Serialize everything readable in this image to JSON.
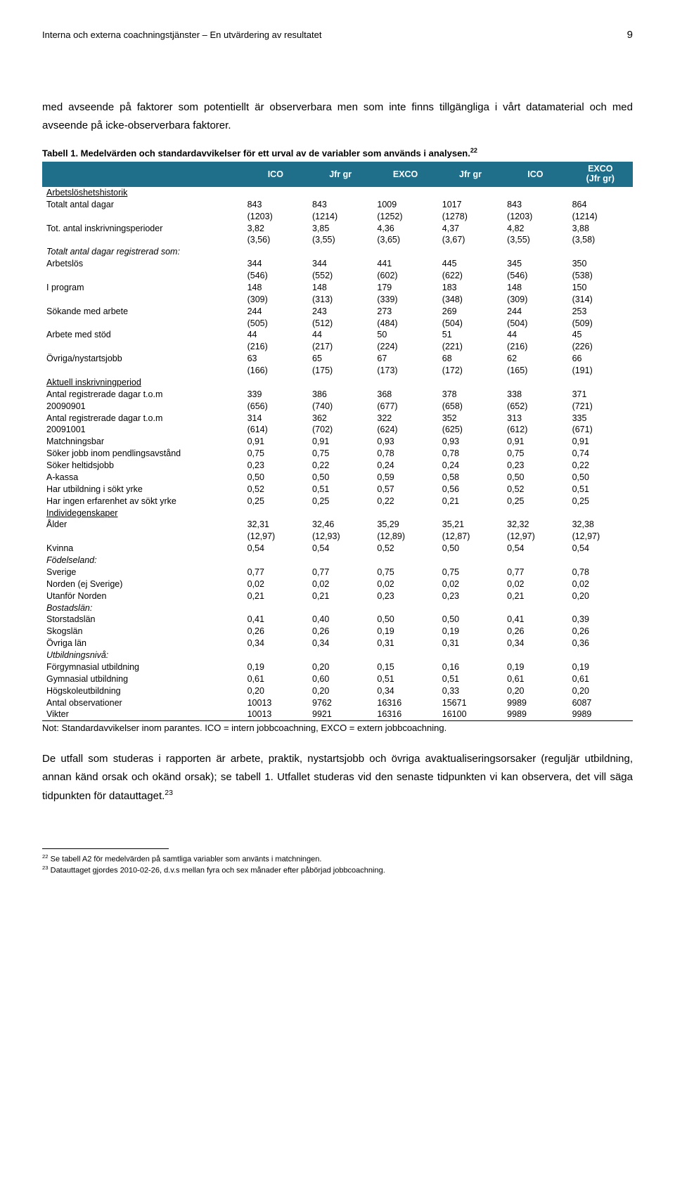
{
  "header": {
    "title": "Interna och externa coachningstjänster – En utvärdering av resultatet",
    "page": "9"
  },
  "intro": "med avseende på faktorer som potentiellt är observerbara men som inte finns tillgängliga i vårt datamaterial och med avseende på icke-observerbara faktorer.",
  "table": {
    "caption_line1": "Tabell 1. Medelvärden och standardavvikelser för ett urval av de variabler som används i analysen.",
    "caption_sup": "22",
    "columns": [
      "",
      "ICO",
      "Jfr gr",
      "EXCO",
      "Jfr gr",
      "ICO",
      "EXCO (Jfr gr)"
    ]
  },
  "sections": [
    {
      "type": "section",
      "label": "Arbetslöshetshistorik"
    },
    {
      "type": "data2",
      "label": "Totalt antal dagar",
      "v": [
        "843",
        "843",
        "1009",
        "1017",
        "843",
        "864"
      ],
      "sd": [
        "(1203)",
        "(1214)",
        "(1252)",
        "(1278)",
        "(1203)",
        "(1214)"
      ]
    },
    {
      "type": "data2",
      "label": "Tot. antal inskrivningsperioder",
      "v": [
        "3,82",
        "3,85",
        "4,36",
        "4,37",
        "4,82",
        "3,88"
      ],
      "sd": [
        "(3,56)",
        "(3,55)",
        "(3,65)",
        "(3,67)",
        "(3,55)",
        "(3,58)"
      ]
    },
    {
      "type": "italic",
      "label": "Totalt antal dagar registrerad som:"
    },
    {
      "type": "data2",
      "label": "Arbetslös",
      "v": [
        "344",
        "344",
        "441",
        "445",
        "345",
        "350"
      ],
      "sd": [
        "(546)",
        "(552)",
        "(602)",
        "(622)",
        "(546)",
        "(538)"
      ]
    },
    {
      "type": "data2",
      "label": "I program",
      "v": [
        "148",
        "148",
        "179",
        "183",
        "148",
        "150"
      ],
      "sd": [
        "(309)",
        "(313)",
        "(339)",
        "(348)",
        "(309)",
        "(314)"
      ]
    },
    {
      "type": "data2",
      "label": "Sökande med arbete",
      "v": [
        "244",
        "243",
        "273",
        "269",
        "244",
        "253"
      ],
      "sd": [
        "(505)",
        "(512)",
        "(484)",
        "(504)",
        "(504)",
        "(509)"
      ]
    },
    {
      "type": "data2",
      "label": "Arbete med stöd",
      "v": [
        "44",
        "44",
        "50",
        "51",
        "44",
        "45"
      ],
      "sd": [
        "(216)",
        "(217)",
        "(224)",
        "(221)",
        "(216)",
        "(226)"
      ]
    },
    {
      "type": "data2",
      "label": "Övriga/nystartsjobb",
      "v": [
        "63",
        "65",
        "67",
        "68",
        "62",
        "66"
      ],
      "sd": [
        "(166)",
        "(175)",
        "(173)",
        "(172)",
        "(165)",
        "(191)"
      ]
    },
    {
      "type": "section",
      "label": "Aktuell inskrivningperiod"
    },
    {
      "type": "data2",
      "label": "Antal registrerade dagar t.o.m 20090901",
      "v": [
        "339",
        "386",
        "368",
        "378",
        "338",
        "371"
      ],
      "sd": [
        "(656)",
        "(740)",
        "(677)",
        "(658)",
        "(652)",
        "(721)"
      ]
    },
    {
      "type": "data2",
      "label": "Antal registrerade dagar t.o.m 20091001",
      "v": [
        "314",
        "362",
        "322",
        "352",
        "313",
        "335"
      ],
      "sd": [
        "(614)",
        "(702)",
        "(624)",
        "(625)",
        "(612)",
        "(671)"
      ]
    },
    {
      "type": "data1",
      "label": "Matchningsbar",
      "v": [
        "0,91",
        "0,91",
        "0,93",
        "0,93",
        "0,91",
        "0,91"
      ]
    },
    {
      "type": "data1",
      "label": "Söker jobb inom pendlingsavstånd",
      "v": [
        "0,75",
        "0,75",
        "0,78",
        "0,78",
        "0,75",
        "0,74"
      ]
    },
    {
      "type": "data1",
      "label": "Söker heltidsjobb",
      "v": [
        "0,23",
        "0,22",
        "0,24",
        "0,24",
        "0,23",
        "0,22"
      ]
    },
    {
      "type": "data1",
      "label": "A-kassa",
      "v": [
        "0,50",
        "0,50",
        "0,59",
        "0,58",
        "0,50",
        "0,50"
      ]
    },
    {
      "type": "data1",
      "label": "Har utbildning i sökt yrke",
      "v": [
        "0,52",
        "0,51",
        "0,57",
        "0,56",
        "0,52",
        "0,51"
      ]
    },
    {
      "type": "data1",
      "label": "Har ingen erfarenhet av sökt yrke",
      "v": [
        "0,25",
        "0,25",
        "0,22",
        "0,21",
        "0,25",
        "0,25"
      ]
    },
    {
      "type": "section",
      "label": "Individegenskaper"
    },
    {
      "type": "data2",
      "label": "Ålder",
      "v": [
        "32,31",
        "32,46",
        "35,29",
        "35,21",
        "32,32",
        "32,38"
      ],
      "sd": [
        "(12,97)",
        "(12,93)",
        "(12,89)",
        "(12,87)",
        "(12,97)",
        "(12,97)"
      ]
    },
    {
      "type": "data1",
      "label": "Kvinna",
      "v": [
        "0,54",
        "0,54",
        "0,52",
        "0,50",
        "0,54",
        "0,54"
      ]
    },
    {
      "type": "italic",
      "label": "Födelseland:"
    },
    {
      "type": "data1",
      "label": "Sverige",
      "v": [
        "0,77",
        "0,77",
        "0,75",
        "0,75",
        "0,77",
        "0,78"
      ]
    },
    {
      "type": "data1",
      "label": "Norden (ej Sverige)",
      "v": [
        "0,02",
        "0,02",
        "0,02",
        "0,02",
        "0,02",
        "0,02"
      ]
    },
    {
      "type": "data1",
      "label": "Utanför Norden",
      "v": [
        "0,21",
        "0,21",
        "0,23",
        "0,23",
        "0,21",
        "0,20"
      ]
    },
    {
      "type": "italic",
      "label": "Bostadslän:"
    },
    {
      "type": "data1",
      "label": "Storstadslän",
      "v": [
        "0,41",
        "0,40",
        "0,50",
        "0,50",
        "0,41",
        "0,39"
      ]
    },
    {
      "type": "data1",
      "label": "Skogslän",
      "v": [
        "0,26",
        "0,26",
        "0,19",
        "0,19",
        "0,26",
        "0,26"
      ]
    },
    {
      "type": "data1",
      "label": "Övriga län",
      "v": [
        "0,34",
        "0,34",
        "0,31",
        "0,31",
        "0,34",
        "0,36"
      ]
    },
    {
      "type": "italic",
      "label": "Utbildningsnivå:"
    },
    {
      "type": "data1",
      "label": "Förgymnasial utbildning",
      "v": [
        "0,19",
        "0,20",
        "0,15",
        "0,16",
        "0,19",
        "0,19"
      ]
    },
    {
      "type": "data1",
      "label": "Gymnasial utbildning",
      "v": [
        "0,61",
        "0,60",
        "0,51",
        "0,51",
        "0,61",
        "0,61"
      ]
    },
    {
      "type": "data1",
      "label": "Högskoleutbildning",
      "v": [
        "0,20",
        "0,20",
        "0,34",
        "0,33",
        "0,20",
        "0,20"
      ]
    },
    {
      "type": "data1",
      "label": "Antal observationer",
      "v": [
        "10013",
        "9762",
        "16316",
        "15671",
        "9989",
        "6087"
      ]
    },
    {
      "type": "data1",
      "label": "Vikter",
      "v": [
        "10013",
        "9921",
        "16316",
        "16100",
        "9989",
        "9989"
      ]
    }
  ],
  "table_note": "Not: Standardavvikelser inom parantes. ICO = intern jobbcoachning, EXCO = extern jobbcoachning.",
  "body_para": "De utfall som studeras i rapporten är arbete, praktik, nystartsjobb och övriga avaktualiseringsorsaker (reguljär utbildning, annan känd orsak och okänd orsak); se tabell 1. Utfallet studeras vid den senaste tidpunkten vi kan observera, det vill säga tidpunkten för datauttaget.",
  "body_para_sup": "23",
  "footnotes": {
    "n22": "Se tabell A2 för medelvärden på samtliga variabler som använts i matchningen.",
    "n23": "Datauttaget gjordes 2010-02-26, d.v.s  mellan fyra och sex månader efter påbörjad jobbcoachning."
  }
}
